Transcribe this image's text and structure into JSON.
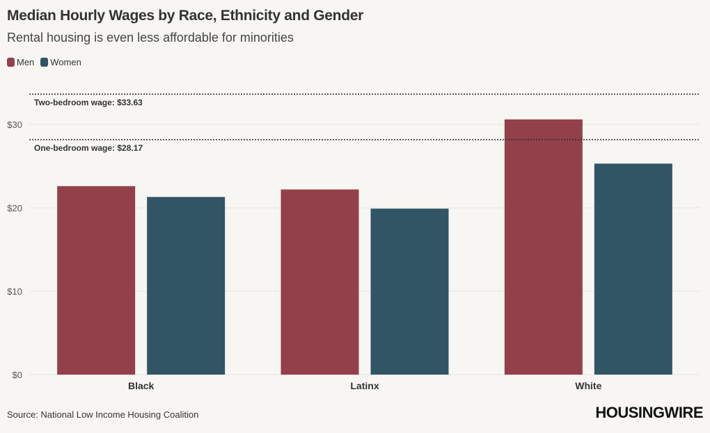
{
  "header": {
    "title": "Median Hourly Wages by Race, Ethnicity and Gender",
    "subtitle": "Rental housing is even less affordable for minorities"
  },
  "legend": {
    "men": "Men",
    "women": "Women"
  },
  "colors": {
    "men": "#93404b",
    "women": "#325566",
    "gridline": "#e6e4df",
    "refline": "#333333",
    "background": "#f7f6f2"
  },
  "footer": {
    "source": "Source: National Low Income Housing Coalition",
    "brand": "HOUSINGWIRE"
  },
  "chart_data": {
    "type": "bar",
    "title": "Median Hourly Wages by Race, Ethnicity and Gender",
    "subtitle": "Rental housing is even less affordable for minorities",
    "categories": [
      "Black",
      "Latinx",
      "White"
    ],
    "series": [
      {
        "name": "Men",
        "values": [
          22.6,
          22.2,
          30.6
        ]
      },
      {
        "name": "Women",
        "values": [
          21.3,
          19.9,
          25.3
        ]
      }
    ],
    "ylim": [
      0,
      35
    ],
    "yticks": [
      0,
      10,
      20,
      30
    ],
    "ytick_labels": [
      "$0",
      "$10",
      "$20",
      "$30"
    ],
    "xlabel": "",
    "ylabel": "",
    "grid": true,
    "legend_position": "top-left",
    "reference_lines": [
      {
        "label": "Two-bedroom wage: $33.63",
        "value": 33.63
      },
      {
        "label": "One-bedroom wage: $28.17",
        "value": 28.17
      }
    ]
  }
}
